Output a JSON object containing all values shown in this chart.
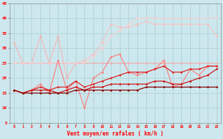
{
  "xlabel": "Vent moyen/en rafales ( km/h )",
  "xlim": [
    -0.5,
    23.5
  ],
  "ylim": [
    5,
    45
  ],
  "xticks": [
    0,
    1,
    2,
    3,
    4,
    5,
    6,
    7,
    8,
    9,
    10,
    11,
    12,
    13,
    14,
    15,
    16,
    17,
    18,
    19,
    20,
    21,
    22,
    23
  ],
  "yticks": [
    5,
    10,
    15,
    20,
    25,
    30,
    35,
    40,
    45
  ],
  "background_color": "#cce8ee",
  "grid_color": "#aacccc",
  "series": [
    {
      "color": "#ffaaaa",
      "linewidth": 0.7,
      "marker": "D",
      "markersize": 1.5,
      "y": [
        32,
        25,
        25,
        34,
        25,
        34,
        20,
        25,
        25,
        25,
        25,
        25,
        25,
        25,
        25,
        25,
        25,
        25,
        25,
        25,
        25,
        25,
        25,
        25
      ]
    },
    {
      "color": "#ffbbbb",
      "linewidth": 0.7,
      "marker": "D",
      "markersize": 1.5,
      "y": [
        25,
        25,
        25,
        25,
        25,
        25,
        25,
        25,
        26,
        28,
        32,
        38,
        37,
        37,
        38,
        39,
        38,
        38,
        38,
        38,
        38,
        38,
        38,
        34
      ]
    },
    {
      "color": "#ffcccc",
      "linewidth": 0.7,
      "marker": "D",
      "markersize": 1.5,
      "y": [
        25,
        25,
        25,
        25,
        25,
        25,
        25,
        25,
        25,
        27,
        30,
        34,
        36,
        38,
        40,
        40,
        40,
        40,
        40,
        40,
        40,
        40,
        40,
        40
      ]
    },
    {
      "color": "#ff7777",
      "linewidth": 0.8,
      "marker": "D",
      "markersize": 1.5,
      "y": [
        16,
        15,
        16,
        18,
        15,
        26,
        16,
        19,
        10,
        20,
        22,
        27,
        28,
        22,
        21,
        22,
        23,
        26,
        17,
        18,
        23,
        21,
        24,
        24
      ]
    },
    {
      "color": "#dd2222",
      "linewidth": 0.9,
      "marker": "D",
      "markersize": 1.5,
      "y": [
        16,
        15,
        16,
        17,
        16,
        17,
        17,
        19,
        17,
        18,
        19,
        20,
        21,
        22,
        22,
        22,
        23,
        24,
        22,
        22,
        23,
        23,
        24,
        24
      ]
    },
    {
      "color": "#cc1111",
      "linewidth": 0.9,
      "marker": "D",
      "markersize": 1.5,
      "y": [
        16,
        15,
        16,
        16,
        16,
        15,
        16,
        17,
        16,
        17,
        17,
        18,
        18,
        18,
        18,
        18,
        19,
        19,
        18,
        18,
        19,
        20,
        21,
        23
      ]
    },
    {
      "color": "#880000",
      "linewidth": 0.9,
      "marker": "D",
      "markersize": 1.5,
      "y": [
        16,
        15,
        15,
        15,
        15,
        15,
        15,
        16,
        16,
        16,
        16,
        16,
        16,
        16,
        16,
        17,
        17,
        17,
        17,
        17,
        17,
        17,
        17,
        17
      ]
    }
  ]
}
